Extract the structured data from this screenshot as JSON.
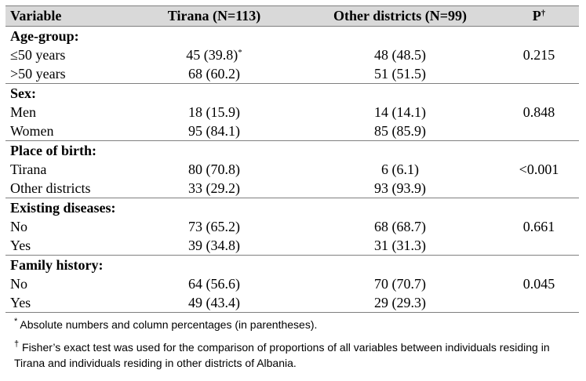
{
  "table": {
    "headers": {
      "variable": "Variable",
      "tirana": "Tirana  (N=113)",
      "other": "Other districts  (N=99)",
      "p": "P",
      "p_sup": "†"
    },
    "sections": [
      {
        "title": "Age-group:",
        "rows": [
          {
            "label": "≤50 years",
            "tirana": "45 (39.8)",
            "tirana_sup": "*",
            "other": "48 (48.5)",
            "p": "0.215"
          },
          {
            "label": ">50 years",
            "tirana": "68 (60.2)",
            "tirana_sup": "",
            "other": "51 (51.5)",
            "p": ""
          }
        ]
      },
      {
        "title": "Sex:",
        "rows": [
          {
            "label": "Men",
            "tirana": "18 (15.9)",
            "tirana_sup": "",
            "other": "14 (14.1)",
            "p": "0.848"
          },
          {
            "label": "Women",
            "tirana": "95 (84.1)",
            "tirana_sup": "",
            "other": "85 (85.9)",
            "p": ""
          }
        ]
      },
      {
        "title": "Place of birth:",
        "rows": [
          {
            "label": "Tirana",
            "tirana": "80 (70.8)",
            "tirana_sup": "",
            "other": "6 (6.1)",
            "p": "<0.001"
          },
          {
            "label": "Other districts",
            "tirana": "33 (29.2)",
            "tirana_sup": "",
            "other": "93 (93.9)",
            "p": ""
          }
        ]
      },
      {
        "title": "Existing diseases:",
        "rows": [
          {
            "label": "No",
            "tirana": "73 (65.2)",
            "tirana_sup": "",
            "other": "68 (68.7)",
            "p": "0.661"
          },
          {
            "label": "Yes",
            "tirana": "39 (34.8)",
            "tirana_sup": "",
            "other": "31 (31.3)",
            "p": ""
          }
        ]
      },
      {
        "title": "Family history:",
        "rows": [
          {
            "label": "No",
            "tirana": "64 (56.6)",
            "tirana_sup": "",
            "other": "70 (70.7)",
            "p": "0.045"
          },
          {
            "label": "Yes",
            "tirana": "49 (43.4)",
            "tirana_sup": "",
            "other": "29 (29.3)",
            "p": ""
          }
        ]
      }
    ]
  },
  "footnotes": {
    "star_mark": "*",
    "star_text": " Absolute numbers and column percentages (in parentheses).",
    "dagger_mark": "†",
    "dagger_text": " Fisher’s exact test was used for the comparison of proportions of all variables between individuals residing in Tirana and individuals residing in other districts of Albania."
  }
}
